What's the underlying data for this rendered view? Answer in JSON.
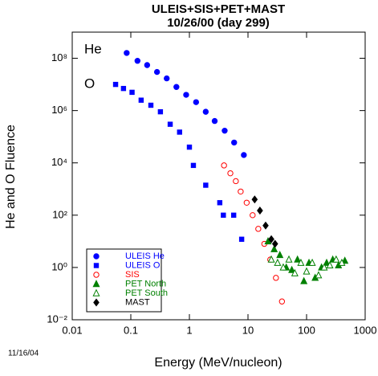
{
  "chart_data": {
    "type": "scatter",
    "title": "ULEIS+SIS+PET+MAST",
    "subtitle": "10/26/00 (day 299)",
    "x_label": "Energy (MeV/nucleon)",
    "y_label": "He and O Fluence",
    "date_note": "11/16/04",
    "annotations": [
      "He",
      "O"
    ],
    "xscale": "log",
    "yscale": "log",
    "xlim": [
      0.01,
      1000
    ],
    "ylim": [
      0.01,
      1000000000
    ],
    "xticks": [
      0.01,
      0.1,
      1,
      10,
      100,
      1000
    ],
    "yticks": [
      {
        "value": 0.01,
        "label": "10⁻²"
      },
      {
        "value": 1,
        "label": "10⁰"
      },
      {
        "value": 100,
        "label": "10²"
      },
      {
        "value": 10000,
        "label": "10⁴"
      },
      {
        "value": 1000000,
        "label": "10⁶"
      },
      {
        "value": 100000000,
        "label": "10⁸"
      }
    ],
    "legend": "lower left",
    "series": [
      {
        "name": "ULEIS He",
        "color": "#0000ff",
        "marker": "circle",
        "x": [
          0.085,
          0.13,
          0.19,
          0.28,
          0.41,
          0.6,
          0.88,
          1.3,
          1.9,
          2.7,
          4.0,
          5.8,
          8.5
        ],
        "values": [
          160000000,
          80000000,
          55000000,
          30000000,
          17000000,
          8000000,
          4000000,
          2100000,
          900000,
          400000,
          170000,
          60000,
          20000
        ]
      },
      {
        "name": "ULEIS O",
        "color": "#0000ff",
        "marker": "square",
        "x": [
          0.055,
          0.075,
          0.105,
          0.15,
          0.22,
          0.32,
          0.47,
          0.68,
          1.0,
          1.17,
          1.9,
          3.3,
          3.8,
          5.7,
          7.8
        ],
        "values": [
          10000000,
          7000000,
          5000000,
          2500000,
          1600000,
          900000,
          300000,
          150000,
          40000,
          8000,
          1400,
          300,
          100,
          100,
          12
        ]
      },
      {
        "name": "SIS",
        "color": "#ff0000",
        "marker": "open-circle",
        "x": [
          3.9,
          5.0,
          6.2,
          7.5,
          9.5,
          12,
          15,
          19,
          24,
          30,
          38
        ],
        "values": [
          8000,
          4000,
          2000,
          800,
          300,
          100,
          30,
          8,
          2,
          0.4,
          0.05
        ]
      },
      {
        "name": "PET North",
        "color": "#008000",
        "marker": "triangle",
        "x": [
          22,
          28,
          35,
          45,
          56,
          70,
          90,
          110,
          140,
          180,
          220,
          280,
          350,
          450
        ],
        "values": [
          10,
          5,
          3,
          1,
          0.8,
          2,
          0.3,
          1.5,
          0.4,
          1,
          1.5,
          2,
          1.2,
          1.8
        ]
      },
      {
        "name": "PET South",
        "color": "#008000",
        "marker": "open-triangle",
        "x": [
          25,
          32,
          40,
          50,
          63,
          80,
          100,
          125,
          160,
          200,
          250,
          320,
          400
        ],
        "values": [
          2,
          1.5,
          1,
          2,
          0.6,
          1.5,
          0.7,
          1.5,
          0.5,
          1,
          1.2,
          2,
          1.5
        ]
      },
      {
        "name": "MAST",
        "color": "#000000",
        "marker": "diamond",
        "x": [
          13,
          16,
          20,
          25,
          29
        ],
        "values": [
          400,
          150,
          40,
          12,
          8
        ]
      }
    ]
  }
}
